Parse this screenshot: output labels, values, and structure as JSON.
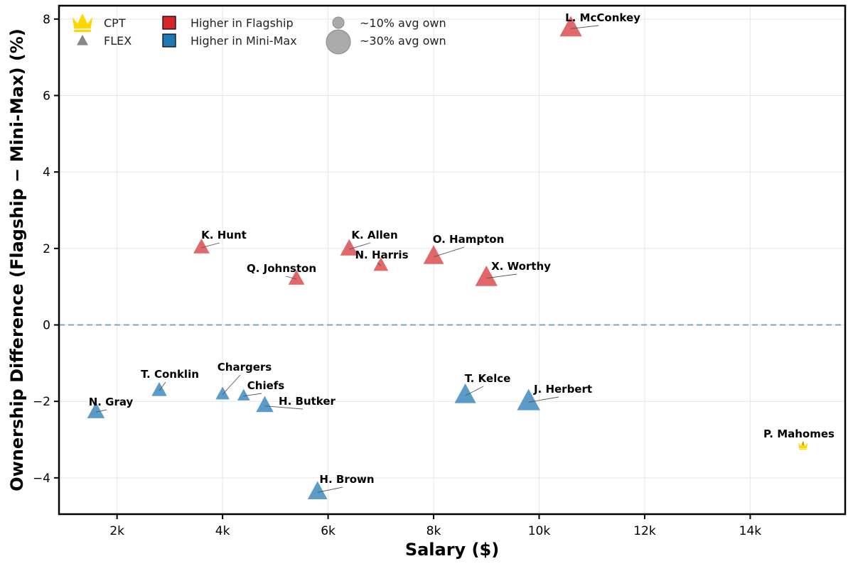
{
  "chart_data": {
    "type": "scatter",
    "title": "",
    "xlabel": "Salary ($)",
    "ylabel": "Ownership Difference (Flagship − Mini-Max) (%)",
    "xlim": [
      900,
      15800
    ],
    "ylim": [
      -4.95,
      8.35
    ],
    "x_ticks": [
      {
        "value": 2000,
        "label": "2k"
      },
      {
        "value": 4000,
        "label": "4k"
      },
      {
        "value": 6000,
        "label": "6k"
      },
      {
        "value": 8000,
        "label": "8k"
      },
      {
        "value": 10000,
        "label": "10k"
      },
      {
        "value": 12000,
        "label": "12k"
      },
      {
        "value": 14000,
        "label": "14k"
      }
    ],
    "y_ticks": [
      {
        "value": -4,
        "label": "−4"
      },
      {
        "value": -2,
        "label": "−2"
      },
      {
        "value": 0,
        "label": "0"
      },
      {
        "value": 2,
        "label": "2"
      },
      {
        "value": 4,
        "label": "4"
      },
      {
        "value": 6,
        "label": "6"
      },
      {
        "value": 8,
        "label": "8"
      }
    ],
    "grid": true,
    "reference_line": {
      "y": 0,
      "style": "dashed",
      "color": "#7BA6C9"
    },
    "colors": {
      "flagship": "#E05A5D",
      "minimax": "#4C92C3",
      "cpt": "#FFD700",
      "neutral": "#888888"
    },
    "points": [
      {
        "name": "L. McConkey",
        "salary": 10600,
        "diff": 7.75,
        "own": 28,
        "role": "FLEX"
      },
      {
        "name": "K. Hunt",
        "salary": 3600,
        "diff": 2.02,
        "own": 14,
        "role": "FLEX"
      },
      {
        "name": "K. Allen",
        "salary": 6400,
        "diff": 1.98,
        "own": 18,
        "role": "FLEX"
      },
      {
        "name": "N. Harris",
        "salary": 7000,
        "diff": 1.55,
        "own": 11,
        "role": "FLEX"
      },
      {
        "name": "O. Hampton",
        "salary": 8000,
        "diff": 1.78,
        "own": 24,
        "role": "FLEX"
      },
      {
        "name": "Q. Johnston",
        "salary": 5400,
        "diff": 1.2,
        "own": 14,
        "role": "FLEX"
      },
      {
        "name": "X. Worthy",
        "salary": 9000,
        "diff": 1.22,
        "own": 28,
        "role": "FLEX"
      },
      {
        "name": "T. Conklin",
        "salary": 2800,
        "diff": -1.72,
        "own": 12,
        "role": "FLEX"
      },
      {
        "name": "N. Gray",
        "salary": 1600,
        "diff": -2.28,
        "own": 17,
        "role": "FLEX"
      },
      {
        "name": "Chargers",
        "salary": 4000,
        "diff": -1.82,
        "own": 9,
        "role": "FLEX"
      },
      {
        "name": "Chiefs",
        "salary": 4400,
        "diff": -1.86,
        "own": 6,
        "role": "FLEX"
      },
      {
        "name": "H. Butker",
        "salary": 4800,
        "diff": -2.12,
        "own": 17,
        "role": "FLEX"
      },
      {
        "name": "T. Kelce",
        "salary": 8600,
        "diff": -1.85,
        "own": 26,
        "role": "FLEX"
      },
      {
        "name": "J. Herbert",
        "salary": 9800,
        "diff": -2.02,
        "own": 30,
        "role": "FLEX"
      },
      {
        "name": "H. Brown",
        "salary": 5800,
        "diff": -4.38,
        "own": 22,
        "role": "FLEX"
      },
      {
        "name": "P. Mahomes",
        "salary": 15000,
        "diff": -3.15,
        "own": 4,
        "role": "CPT"
      }
    ],
    "legend": {
      "position": "top-left",
      "items": [
        {
          "symbol": "crown",
          "label": "CPT"
        },
        {
          "symbol": "triangle",
          "label": "FLEX"
        },
        {
          "symbol": "square-red",
          "label": "Higher in Flagship"
        },
        {
          "symbol": "square-blue",
          "label": "Higher in Mini-Max"
        },
        {
          "symbol": "circle-small",
          "label": "~10% avg own"
        },
        {
          "symbol": "circle-large",
          "label": "~30% avg own"
        }
      ]
    }
  }
}
